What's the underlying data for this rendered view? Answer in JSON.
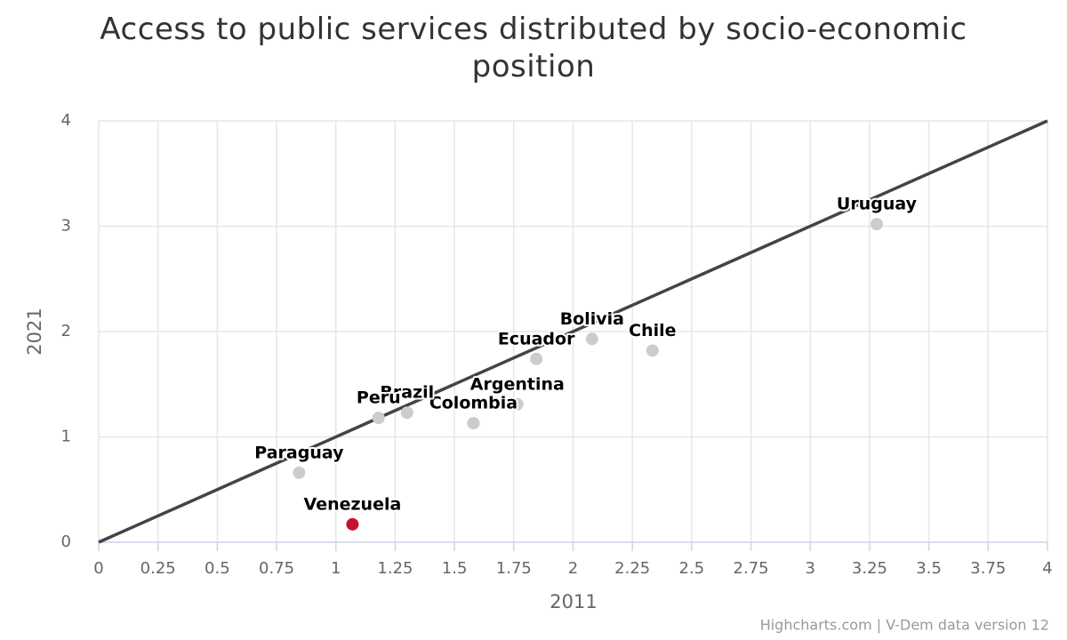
{
  "chart_data": {
    "type": "scatter",
    "title": "Access to public services distributed by socio-economic position",
    "x_label": "2011",
    "y_label": "2021",
    "credits": "Highcharts.com | V-Dem data version 12",
    "xlim": [
      0,
      4
    ],
    "ylim": [
      0,
      4
    ],
    "xticks": [
      0,
      0.25,
      0.5,
      0.75,
      1,
      1.25,
      1.5,
      1.75,
      2,
      2.25,
      2.5,
      2.75,
      3,
      3.25,
      3.5,
      3.75,
      4
    ],
    "yticks": [
      0,
      1,
      2,
      3,
      4
    ],
    "grid": true,
    "labels": [
      "Uruguay",
      "Chile",
      "Bolivia",
      "Ecuador",
      "Argentina",
      "Colombia",
      "Brazil",
      "Peru",
      "Paraguay",
      "Venezuela"
    ],
    "x": [
      3.28,
      2.335,
      2.08,
      1.845,
      1.765,
      1.58,
      1.3,
      1.18,
      0.845,
      1.07
    ],
    "y": [
      3.02,
      1.82,
      1.93,
      1.74,
      1.31,
      1.13,
      1.23,
      1.18,
      0.66,
      0.17
    ],
    "colors": [
      "#cccccc",
      "#cccccc",
      "#cccccc",
      "#cccccc",
      "#cccccc",
      "#cccccc",
      "#cccccc",
      "#cccccc",
      "#cccccc",
      "#c8102e"
    ],
    "diagonal": {
      "x": [
        0,
        4
      ],
      "y": [
        0,
        4
      ],
      "color": "#444444"
    }
  }
}
